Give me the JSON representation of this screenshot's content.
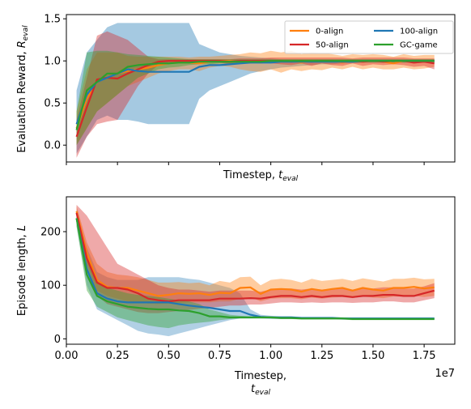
{
  "chart_data": [
    {
      "type": "line",
      "xlabel": "Timestep, ",
      "xlabel_sym": "t",
      "xlabel_sub": "eval",
      "ylabel": "Evaluation Reward, ",
      "ylabel_sym": "R",
      "ylabel_sub": "eval",
      "xlim": [
        0,
        19000000
      ],
      "ylim": [
        -0.2,
        1.55
      ],
      "xticks_labeled": false,
      "yticks": [
        "0.0",
        "0.5",
        "1.0",
        "1.5"
      ],
      "legend": {
        "placement": "top-right",
        "columns": 2
      },
      "x": [
        500000,
        1000000,
        1500000,
        2000000,
        2500000,
        3000000,
        3500000,
        4000000,
        4500000,
        5000000,
        5500000,
        6000000,
        6500000,
        7000000,
        7500000,
        8000000,
        8500000,
        9000000,
        9500000,
        10000000,
        10500000,
        11000000,
        11500000,
        12000000,
        12500000,
        13000000,
        13500000,
        14000000,
        14500000,
        15000000,
        15500000,
        16000000,
        16500000,
        17000000,
        17500000,
        18000000
      ],
      "series": [
        {
          "name": "0-align",
          "color": "#ff7f0e",
          "values": [
            0.2,
            0.55,
            0.75,
            0.8,
            0.85,
            0.88,
            0.9,
            0.92,
            0.95,
            0.97,
            0.98,
            0.98,
            0.97,
            0.99,
            1.0,
            1.0,
            0.99,
            1.0,
            0.98,
            1.0,
            0.99,
            1.0,
            0.98,
            1.0,
            0.99,
            1.0,
            0.98,
            1.0,
            0.99,
            1.0,
            0.99,
            0.97,
            1.0,
            0.98,
            0.99,
            1.0
          ],
          "lower": [
            0.0,
            0.2,
            0.4,
            0.5,
            0.6,
            0.7,
            0.75,
            0.8,
            0.85,
            0.88,
            0.9,
            0.9,
            0.88,
            0.92,
            0.94,
            0.93,
            0.9,
            0.88,
            0.87,
            0.9,
            0.86,
            0.9,
            0.88,
            0.9,
            0.89,
            0.92,
            0.9,
            0.93,
            0.9,
            0.92,
            0.9,
            0.9,
            0.92,
            0.9,
            0.91,
            0.93
          ],
          "upper": [
            0.4,
            0.9,
            1.1,
            1.1,
            1.1,
            1.06,
            1.05,
            1.05,
            1.05,
            1.05,
            1.05,
            1.04,
            1.05,
            1.05,
            1.06,
            1.07,
            1.08,
            1.1,
            1.09,
            1.12,
            1.1,
            1.12,
            1.08,
            1.1,
            1.09,
            1.08,
            1.06,
            1.08,
            1.07,
            1.08,
            1.07,
            1.05,
            1.08,
            1.06,
            1.07,
            1.07
          ]
        },
        {
          "name": "50-align",
          "color": "#d62728",
          "values": [
            0.1,
            0.45,
            0.78,
            0.8,
            0.79,
            0.85,
            0.9,
            0.95,
            0.99,
            1.0,
            1.0,
            1.0,
            1.0,
            1.0,
            1.0,
            0.99,
            1.0,
            1.0,
            1.0,
            1.0,
            1.0,
            0.99,
            1.0,
            0.99,
            1.0,
            1.0,
            0.99,
            1.0,
            0.99,
            1.0,
            0.99,
            1.0,
            1.0,
            0.98,
            0.99,
            0.97
          ],
          "lower": [
            -0.15,
            0.1,
            0.25,
            0.28,
            0.3,
            0.5,
            0.7,
            0.85,
            0.95,
            0.97,
            0.98,
            0.98,
            0.98,
            0.98,
            0.98,
            0.96,
            0.97,
            0.97,
            0.98,
            0.97,
            0.96,
            0.95,
            0.97,
            0.94,
            0.97,
            0.95,
            0.94,
            0.97,
            0.94,
            0.96,
            0.95,
            0.96,
            0.95,
            0.93,
            0.94,
            0.9
          ],
          "upper": [
            0.3,
            0.8,
            1.3,
            1.35,
            1.3,
            1.25,
            1.15,
            1.05,
            1.02,
            1.02,
            1.02,
            1.02,
            1.02,
            1.02,
            1.02,
            1.02,
            1.03,
            1.03,
            1.03,
            1.04,
            1.04,
            1.04,
            1.04,
            1.04,
            1.04,
            1.04,
            1.04,
            1.03,
            1.04,
            1.04,
            1.04,
            1.04,
            1.04,
            1.03,
            1.03,
            1.03
          ]
        },
        {
          "name": "100-align",
          "color": "#1f77b4",
          "values": [
            0.25,
            0.6,
            0.75,
            0.8,
            0.85,
            0.9,
            0.88,
            0.87,
            0.87,
            0.87,
            0.87,
            0.87,
            0.93,
            0.95,
            0.95,
            0.96,
            0.97,
            0.98,
            0.98,
            0.98,
            0.99,
            0.99,
            0.99,
            0.99,
            0.99,
            0.99,
            0.99,
            0.99,
            1.0,
            1.0,
            1.0,
            1.0,
            1.0,
            1.0,
            1.0,
            1.0
          ],
          "lower": [
            -0.1,
            0.1,
            0.3,
            0.35,
            0.3,
            0.3,
            0.28,
            0.25,
            0.25,
            0.25,
            0.25,
            0.25,
            0.55,
            0.65,
            0.7,
            0.75,
            0.8,
            0.85,
            0.88,
            0.9,
            0.92,
            0.93,
            0.94,
            0.95,
            0.96,
            0.96,
            0.97,
            0.97,
            0.98,
            0.98,
            0.98,
            0.98,
            0.98,
            0.98,
            0.98,
            0.98
          ],
          "upper": [
            0.65,
            1.1,
            1.25,
            1.4,
            1.45,
            1.45,
            1.45,
            1.45,
            1.45,
            1.45,
            1.45,
            1.45,
            1.2,
            1.15,
            1.1,
            1.08,
            1.06,
            1.05,
            1.04,
            1.03,
            1.02,
            1.02,
            1.02,
            1.02,
            1.02,
            1.02,
            1.02,
            1.02,
            1.02,
            1.02,
            1.02,
            1.02,
            1.02,
            1.02,
            1.02,
            1.02
          ]
        },
        {
          "name": "GC-game",
          "color": "#2ca02c",
          "values": [
            0.18,
            0.65,
            0.75,
            0.85,
            0.85,
            0.93,
            0.95,
            0.96,
            0.97,
            0.97,
            0.98,
            0.98,
            0.99,
            0.99,
            0.99,
            0.99,
            0.99,
            0.99,
            0.99,
            1.0,
            1.0,
            1.0,
            1.0,
            1.0,
            1.0,
            1.0,
            1.0,
            1.0,
            1.0,
            1.0,
            1.0,
            1.0,
            1.0,
            1.0,
            1.0,
            1.0
          ],
          "lower": [
            0.0,
            0.2,
            0.4,
            0.5,
            0.6,
            0.7,
            0.8,
            0.85,
            0.9,
            0.92,
            0.93,
            0.95,
            0.96,
            0.96,
            0.97,
            0.97,
            0.97,
            0.97,
            0.97,
            0.98,
            0.98,
            0.98,
            0.98,
            0.98,
            0.98,
            0.98,
            0.98,
            0.98,
            0.98,
            0.98,
            0.98,
            0.98,
            0.98,
            0.98,
            0.98,
            0.98
          ],
          "upper": [
            0.4,
            1.1,
            1.12,
            1.12,
            1.1,
            1.08,
            1.07,
            1.06,
            1.05,
            1.04,
            1.03,
            1.02,
            1.02,
            1.02,
            1.02,
            1.02,
            1.02,
            1.02,
            1.02,
            1.02,
            1.02,
            1.02,
            1.02,
            1.02,
            1.02,
            1.02,
            1.02,
            1.02,
            1.02,
            1.02,
            1.02,
            1.02,
            1.02,
            1.02,
            1.02,
            1.02
          ]
        }
      ]
    },
    {
      "type": "line",
      "xlabel": "Timestep,",
      "xlabel_sym": "t",
      "xlabel_sub": "eval",
      "ylabel": "Episode length, ",
      "ylabel_sym": "L",
      "xlim": [
        0,
        19000000
      ],
      "ylim": [
        -10,
        265
      ],
      "xticks": [
        "0.00",
        "0.25",
        "0.50",
        "0.75",
        "1.00",
        "1.25",
        "1.50",
        "1.75"
      ],
      "xtick_values": [
        0,
        2500000,
        5000000,
        7500000,
        10000000,
        12500000,
        15000000,
        17500000
      ],
      "x_offset_label": "1e7",
      "yticks": [
        "0",
        "100",
        "200"
      ],
      "ytick_values": [
        0,
        100,
        200
      ],
      "x": [
        500000,
        1000000,
        1500000,
        2000000,
        2500000,
        3000000,
        3500000,
        4000000,
        4500000,
        5000000,
        5500000,
        6000000,
        6500000,
        7000000,
        7500000,
        8000000,
        8500000,
        9000000,
        9500000,
        10000000,
        10500000,
        11000000,
        11500000,
        12000000,
        12500000,
        13000000,
        13500000,
        14000000,
        14500000,
        15000000,
        15500000,
        16000000,
        16500000,
        17000000,
        17500000,
        18000000
      ],
      "series": [
        {
          "name": "0-align",
          "color": "#ff7f0e",
          "values": [
            238,
            160,
            110,
            97,
            95,
            95,
            90,
            85,
            80,
            82,
            85,
            84,
            85,
            82,
            86,
            85,
            95,
            96,
            84,
            92,
            93,
            92,
            88,
            93,
            90,
            93,
            95,
            90,
            95,
            92,
            90,
            95,
            95,
            97,
            94,
            96
          ],
          "lower": [
            225,
            140,
            90,
            80,
            75,
            70,
            68,
            66,
            65,
            66,
            67,
            68,
            68,
            68,
            70,
            70,
            75,
            78,
            70,
            75,
            76,
            76,
            74,
            77,
            75,
            77,
            78,
            76,
            79,
            77,
            76,
            79,
            79,
            80,
            78,
            80
          ],
          "upper": [
            248,
            180,
            140,
            125,
            120,
            118,
            115,
            110,
            105,
            105,
            106,
            104,
            105,
            100,
            108,
            105,
            115,
            116,
            100,
            110,
            112,
            110,
            105,
            112,
            108,
            110,
            112,
            108,
            113,
            110,
            107,
            112,
            112,
            114,
            111,
            112
          ]
        },
        {
          "name": "50-align",
          "color": "#d62728",
          "values": [
            235,
            150,
            105,
            95,
            95,
            92,
            85,
            75,
            72,
            70,
            72,
            72,
            72,
            72,
            75,
            75,
            75,
            76,
            75,
            78,
            80,
            80,
            78,
            80,
            78,
            80,
            80,
            78,
            80,
            80,
            82,
            82,
            80,
            80,
            85,
            90
          ],
          "lower": [
            220,
            130,
            80,
            65,
            60,
            55,
            50,
            48,
            48,
            50,
            52,
            54,
            56,
            58,
            60,
            62,
            62,
            64,
            64,
            66,
            68,
            68,
            67,
            68,
            67,
            68,
            68,
            67,
            68,
            68,
            70,
            70,
            68,
            68,
            72,
            76
          ],
          "upper": [
            250,
            230,
            200,
            170,
            140,
            130,
            120,
            110,
            100,
            95,
            92,
            92,
            90,
            88,
            90,
            90,
            90,
            90,
            88,
            92,
            94,
            94,
            92,
            94,
            92,
            94,
            94,
            92,
            94,
            94,
            96,
            96,
            94,
            94,
            98,
            104
          ]
        },
        {
          "name": "100-align",
          "color": "#1f77b4",
          "values": [
            225,
            130,
            85,
            75,
            70,
            68,
            68,
            68,
            68,
            68,
            65,
            62,
            60,
            58,
            55,
            52,
            52,
            45,
            41,
            40,
            40,
            40,
            39,
            39,
            39,
            39,
            38,
            38,
            38,
            38,
            38,
            38,
            38,
            38,
            38,
            38
          ],
          "lower": [
            210,
            100,
            55,
            45,
            35,
            25,
            15,
            10,
            8,
            5,
            10,
            15,
            20,
            25,
            30,
            35,
            38,
            38,
            38,
            37,
            37,
            37,
            37,
            37,
            37,
            37,
            36,
            36,
            36,
            36,
            36,
            36,
            36,
            36,
            36,
            36
          ],
          "upper": [
            240,
            170,
            125,
            115,
            110,
            110,
            110,
            115,
            115,
            115,
            115,
            112,
            110,
            105,
            100,
            95,
            85,
            55,
            45,
            43,
            42,
            42,
            41,
            41,
            41,
            41,
            40,
            40,
            40,
            40,
            40,
            40,
            40,
            40,
            40,
            40
          ],
          "fill_alpha": 0.35
        },
        {
          "name": "GC-game",
          "color": "#2ca02c",
          "values": [
            225,
            120,
            80,
            70,
            65,
            60,
            58,
            56,
            55,
            55,
            53,
            52,
            48,
            42,
            42,
            40,
            40,
            40,
            40,
            40,
            39,
            39,
            38,
            38,
            38,
            38,
            38,
            37,
            37,
            37,
            37,
            37,
            37,
            37,
            37,
            37
          ],
          "lower": [
            210,
            90,
            60,
            50,
            40,
            35,
            30,
            25,
            22,
            20,
            25,
            28,
            30,
            32,
            35,
            37,
            38,
            38,
            38,
            38,
            37,
            37,
            36,
            36,
            36,
            36,
            36,
            35,
            35,
            35,
            35,
            35,
            35,
            35,
            35,
            35
          ],
          "upper": [
            240,
            160,
            110,
            95,
            90,
            85,
            82,
            80,
            78,
            75,
            72,
            70,
            65,
            55,
            50,
            45,
            43,
            42,
            42,
            42,
            41,
            41,
            40,
            40,
            40,
            40,
            40,
            39,
            39,
            39,
            39,
            39,
            39,
            39,
            39,
            39
          ]
        }
      ]
    }
  ]
}
